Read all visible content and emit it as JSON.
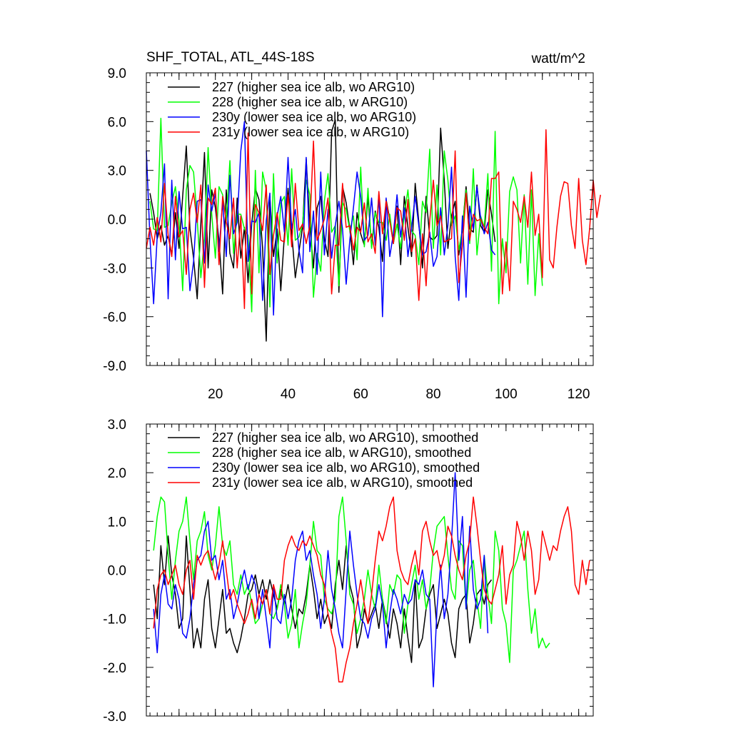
{
  "chart_data": [
    {
      "type": "line",
      "title": "SHF_TOTAL, ATL_44S-18S",
      "units": "watt/m^2",
      "xlim": [
        1,
        124
      ],
      "ylim": [
        -9,
        9
      ],
      "xticks": [
        20,
        40,
        60,
        80,
        100,
        120
      ],
      "xtick_labels": [
        "20",
        "40",
        "60",
        "80",
        "100",
        "120"
      ],
      "yticks": [
        -9,
        -6,
        -3,
        0,
        3,
        6,
        9
      ],
      "ytick_labels": [
        "-9.0",
        "-6.0",
        "-3.0",
        "0.0",
        "3.0",
        "6.0",
        "9.0"
      ],
      "legend_position": "top-left",
      "series": [
        {
          "name": "227 (higher sea ice alb, wo ARG10)",
          "color": "#000000",
          "x_start": 2,
          "values": [
            1.6,
            0.4,
            -1.2,
            -0.4,
            -1.6,
            -1.0,
            -2.2,
            0.4,
            -1.8,
            1.4,
            4.5,
            -0.6,
            -2.4,
            -4.9,
            -0.3,
            4.1,
            -3.0,
            1.8,
            0.7,
            -1.3,
            -4.6,
            1.8,
            -2.1,
            -3.0,
            1.3,
            -2.4,
            -0.5,
            -3.9,
            -0.3,
            1.9,
            1.2,
            -1.8,
            -7.5,
            1.4,
            -2.3,
            -0.6,
            -4.4,
            -1.0,
            1.9,
            -0.8,
            -3.6,
            -2.0,
            -0.5,
            3.7,
            -0.4,
            -3.0,
            0.7,
            1.4,
            -1.2,
            -2.3,
            5.4,
            6.1,
            -4.5,
            2.0,
            1.0,
            -0.6,
            -2.8,
            0.4,
            -0.9,
            -1.6,
            1.4,
            -1.7,
            0.5,
            -0.5,
            -2.6,
            1.2,
            0.0,
            -1.5,
            0.8,
            -2.8,
            1.4,
            -0.5,
            -2.3,
            2.2,
            -0.2,
            -3.0,
            1.4,
            -1.1,
            -1.3,
            -1.0,
            5.6,
            2.4,
            -1.8,
            0.2,
            1.1,
            -2.2,
            -0.6,
            2.0,
            -0.6,
            -0.8,
            2.1,
            -0.4,
            -0.8,
            1.8,
            0.3,
            -1.4
          ]
        },
        {
          "name": "228 (higher sea ice alb, w ARG10)",
          "color": "#00ff00",
          "x_start": 2,
          "values": [
            1.1,
            -0.6,
            -0.7,
            6.2,
            -0.5,
            -0.4,
            1.0,
            2.0,
            -0.1,
            -4.4,
            1.8,
            3.3,
            2.9,
            0.0,
            -3.6,
            -1.2,
            4.4,
            0.3,
            -2.4,
            2.0,
            1.5,
            -0.1,
            3.6,
            -2.1,
            0.3,
            0.3,
            -0.6,
            -1.0,
            -5.7,
            3.0,
            -3.3,
            2.9,
            1.8,
            -5.4,
            2.8,
            -2.7,
            1.0,
            1.4,
            -1.6,
            3.1,
            -1.3,
            -1.1,
            -0.3,
            2.4,
            1.5,
            -4.8,
            -2.1,
            -3.2,
            1.1,
            2.8,
            -0.8,
            -0.4,
            -4.1,
            1.0,
            0.6,
            -0.7,
            0.2,
            -2.5,
            3.2,
            -1.7,
            1.9,
            -1.8,
            0.4,
            -0.2,
            -0.2,
            -1.3,
            0.3,
            -1.5,
            -0.3,
            -1.8,
            0.3,
            1.8,
            -0.7,
            -1.0,
            -2.8,
            1.1,
            0.4,
            4.3,
            -1.8,
            2.1,
            -2.2,
            4.2,
            2.4,
            -0.4,
            0.2,
            -1.9,
            -0.6,
            1.8,
            -1.5,
            3.1,
            -2.2,
            0.2,
            -0.5,
            2.8,
            -3.2,
            5.4,
            -5.2,
            -1.2,
            -3.3,
            1.7,
            2.6,
            1.8,
            -2.7,
            1.5,
            -4.0,
            1.8,
            -4.7,
            -0.9,
            -4.1
          ]
        },
        {
          "name": "230y (lower sea ice alb, wo ARG10)",
          "color": "#0000ff",
          "x_start": 1,
          "values": [
            4.2,
            -1.2,
            -5.2,
            -1.0,
            0.4,
            3.4,
            -4.9,
            2.4,
            -2.5,
            1.7,
            -0.6,
            -0.5,
            -4.4,
            -2.6,
            1.1,
            1.2,
            -2.7,
            2.1,
            0.5,
            1.6,
            -2.0,
            1.1,
            -2.3,
            2.7,
            -0.9,
            -0.2,
            4.2,
            6.0,
            -2.6,
            -0.1,
            -0.2,
            0.4,
            -5.0,
            -0.1,
            1.6,
            -5.9,
            0.2,
            1.4,
            -0.8,
            3.8,
            -0.6,
            0.6,
            -1.9,
            -3.3,
            3.8,
            -2.0,
            0.5,
            -3.4,
            2.9,
            -2.2,
            0.6,
            -2.4,
            -0.4,
            1.1,
            -0.6,
            -4.0,
            -1.3,
            0.7,
            2.9,
            1.4,
            -1.3,
            -1.0,
            1.3,
            -1.6,
            1.5,
            -6.0,
            1.3,
            -2.3,
            -0.9,
            1.5,
            -1.1,
            0.7,
            -2.3,
            -0.5,
            1.4,
            -0.4,
            -2.2,
            -2.0,
            -0.8,
            -2.9,
            -2.3,
            0.7,
            -2.2,
            -0.4,
            3.2,
            -2.3,
            -5.0,
            0.2,
            -4.8,
            0.8,
            -0.6,
            2.0,
            0.1,
            -0.9,
            -0.2,
            -1.9,
            -2.2
          ]
        },
        {
          "name": "231y (lower sea ice alb, w ARG10)",
          "color": "#ff0000",
          "x_start": 1,
          "values": [
            -1.8,
            -0.5,
            -1.6,
            0.1,
            -1.4,
            2.2,
            -1.0,
            -2.3,
            1.4,
            -1.1,
            -0.7,
            -3.4,
            0.6,
            1.6,
            -0.2,
            2.1,
            -4.2,
            1.3,
            0.9,
            1.9,
            -2.8,
            1.4,
            -0.2,
            -1.2,
            1.3,
            -3.0,
            0.2,
            -5.5,
            5.3,
            -4.6,
            0.9,
            0.4,
            -0.7,
            2.1,
            -3.4,
            -1.0,
            0.4,
            -1.3,
            -1.4,
            1.5,
            -1.7,
            2.2,
            -0.7,
            -0.3,
            -1.5,
            -0.4,
            4.8,
            -1.3,
            -0.7,
            0.0,
            1.3,
            -4.6,
            -1.6,
            -1.6,
            2.2,
            -0.5,
            -0.4,
            -1.9,
            -0.5,
            -0.8,
            1.0,
            -1.4,
            -0.9,
            -2.1,
            1.7,
            -0.9,
            1.1,
            -0.1,
            -1.5,
            0.7,
            0.5,
            -1.3,
            1.2,
            -2.0,
            -1.2,
            -5.0,
            -0.9,
            -4.1,
            -0.1,
            2.4,
            -0.4,
            0.2,
            -1.4,
            -1.3,
            -1.2,
            4.2,
            -3.9,
            -1.6,
            1.6,
            -1.3,
            0.3,
            -0.1,
            0.0,
            -0.5,
            -0.9,
            2.5,
            2.5,
            2.9,
            -4.6,
            -1.4,
            -4.4,
            1.1,
            0.6,
            -0.2,
            1.4,
            -0.5,
            2.9,
            -1.0,
            0.3,
            -3.6,
            5.5,
            -2.5,
            -3.0,
            -0.5,
            1.4,
            2.3,
            2.2,
            -0.4,
            -1.8,
            2.5,
            -1.3,
            -2.8,
            -0.6,
            2.4,
            0.1,
            1.5
          ]
        }
      ]
    },
    {
      "type": "line",
      "xlim": [
        1,
        124
      ],
      "ylim": [
        -3,
        3
      ],
      "yticks": [
        -3,
        -2,
        -1,
        0,
        1,
        2,
        3
      ],
      "ytick_labels": [
        "-3.0",
        "-2.0",
        "-1.0",
        "0.0",
        "1.0",
        "2.0",
        "3.0"
      ],
      "legend_position": "top-left",
      "series": [
        {
          "name": "227 (higher sea ice alb, wo ARG10), smoothed",
          "color": "#000000",
          "x_start": 3,
          "values": [
            -0.3,
            -1.0,
            0.5,
            -0.3,
            0.7,
            -0.1,
            -0.5,
            -1.2,
            -1.0,
            0.7,
            -0.4,
            -1.6,
            -1.2,
            -1.6,
            -0.6,
            -0.2,
            -1.2,
            -1.6,
            -1.0,
            -0.4,
            -1.3,
            -1.2,
            -1.5,
            -1.7,
            -1.4,
            -1.0,
            -0.5,
            -0.4,
            -0.1,
            -0.5,
            -0.2,
            -0.6,
            -0.2,
            -0.5,
            -0.8,
            -0.4,
            -0.7,
            -0.3,
            -0.8,
            -1.2,
            -0.8,
            -0.9,
            -0.5,
            0.1,
            -0.4,
            -1.0,
            -0.6,
            -1.1,
            -0.9,
            -1.2,
            -0.3,
            0.2,
            -0.4,
            0.5,
            -0.3,
            -0.6,
            -1.6,
            -1.3,
            -0.8,
            -1.1,
            -0.9,
            -0.7,
            -1.2,
            -0.6,
            -1.0,
            -1.4,
            -0.8,
            -1.1,
            -1.6,
            -0.8,
            -1.4,
            -1.9,
            -0.2,
            -1.6,
            -1.4,
            -0.8,
            -0.5,
            -0.3,
            -1.2,
            -0.9,
            -0.6,
            -0.9,
            -1.5,
            -1.8,
            -0.8,
            -0.6,
            -0.5,
            -1.5,
            -1.1,
            -0.5,
            -0.4,
            -0.7,
            -0.3,
            -0.2
          ]
        },
        {
          "name": "228 (higher sea ice alb, w ARG10), smoothed",
          "color": "#00ff00",
          "x_start": 3,
          "values": [
            0.4,
            1.1,
            1.5,
            1.4,
            0.3,
            -0.6,
            0.2,
            0.8,
            1.0,
            1.5,
            0.6,
            -0.2,
            0.6,
            0.8,
            1.2,
            0.3,
            0.0,
            0.5,
            1.3,
            0.5,
            0.3,
            0.6,
            -0.3,
            -0.5,
            -0.1,
            -0.5,
            -0.3,
            -0.7,
            -1.1,
            -1.0,
            -0.7,
            -0.4,
            -0.9,
            -1.0,
            -0.8,
            -0.3,
            -0.7,
            -1.4,
            -1.1,
            -0.4,
            -1.6,
            -1.1,
            -0.7,
            0.1,
            1.0,
            0.4,
            0.3,
            -0.6,
            -0.8,
            -0.9,
            -0.6,
            1.1,
            1.5,
            0.6,
            -0.5,
            -0.7,
            -1.3,
            -1.0,
            -0.6,
            0.0,
            -0.5,
            -0.8,
            0.1,
            -0.6,
            -1.1,
            -0.3,
            -0.5,
            -0.1,
            -0.2,
            -1.3,
            -0.7,
            -0.3,
            0.1,
            -0.6,
            -0.2,
            -0.8,
            -0.4,
            0.4,
            0.9,
            1.0,
            1.1,
            0.3,
            -0.4,
            -0.6,
            0.6,
            0.5,
            -0.8,
            0.0,
            0.2,
            -0.6,
            -1.2,
            0.3,
            -0.5,
            -1.1,
            0.8,
            0.4,
            -0.8,
            -1.1,
            -1.9,
            0.0,
            0.2,
            0.5,
            0.8,
            -0.4,
            -1.3,
            -0.8,
            -1.6,
            -1.4,
            -1.6,
            -1.5
          ]
        },
        {
          "name": "230y (lower sea ice alb, wo ARG10), smoothed",
          "color": "#0000ff",
          "x_start": 3,
          "values": [
            -0.8,
            -1.7,
            -0.5,
            -0.1,
            -0.7,
            -0.8,
            -0.3,
            -0.6,
            -1.3,
            -1.4,
            -1.0,
            -0.3,
            0.2,
            0.3,
            0.8,
            1.0,
            0.2,
            0.3,
            -0.2,
            0.2,
            -0.6,
            -0.4,
            -1.0,
            -0.7,
            -0.3,
            0.0,
            -0.4,
            -0.1,
            -0.3,
            -1.0,
            -0.4,
            -1.0,
            -1.6,
            -0.3,
            -1.0,
            -1.1,
            -0.5,
            -1.0,
            -0.6,
            0.2,
            0.6,
            0.8,
            0.2,
            0.4,
            -0.1,
            -0.5,
            -1.2,
            -0.6,
            0.4,
            -0.4,
            -0.8,
            -1.3,
            -1.6,
            -0.4,
            0.8,
            0.1,
            -0.5,
            -1.0,
            -1.1,
            -1.4,
            -1.0,
            -0.8,
            -0.3,
            -0.7,
            -1.6,
            -0.9,
            -0.4,
            -0.6,
            -0.9,
            -0.5,
            -0.7,
            -0.6,
            -0.2,
            -0.3,
            0.0,
            -0.5,
            -0.6,
            -2.4,
            -0.8,
            0.1,
            -1.0,
            -0.5,
            0.6,
            2.0,
            0.2,
            1.1,
            -0.8,
            0.9,
            -0.4,
            -0.8,
            -0.6,
            0.3,
            -1.3
          ]
        },
        {
          "name": "231y (lower sea ice alb, w ARG10), smoothed",
          "color": "#ff0000",
          "x_start": 3,
          "values": [
            -1.2,
            -0.4,
            -0.1,
            0.0,
            -0.3,
            -0.1,
            0.1,
            -0.3,
            -0.5,
            0.0,
            0.2,
            -0.6,
            0.3,
            0.1,
            0.3,
            0.4,
            0.1,
            -0.2,
            0.1,
            0.6,
            0.0,
            -0.6,
            -0.4,
            -0.7,
            -0.9,
            -1.1,
            -0.9,
            -0.6,
            -1.0,
            -0.5,
            -0.7,
            -0.4,
            -0.9,
            -0.3,
            -0.6,
            -0.6,
            0.2,
            0.5,
            0.7,
            0.5,
            0.4,
            0.6,
            0.5,
            0.7,
            0.5,
            0.3,
            -0.1,
            -0.3,
            -0.9,
            -1.3,
            -1.6,
            -2.3,
            -2.3,
            -1.9,
            -1.6,
            -1.1,
            -0.7,
            -0.2,
            -0.7,
            -1.1,
            -0.5,
            0.2,
            0.8,
            0.6,
            0.9,
            1.3,
            1.5,
            0.4,
            0.0,
            -0.2,
            -0.3,
            0.1,
            0.4,
            -0.1,
            0.8,
            1.0,
            0.6,
            0.3,
            0.4,
            0.0,
            0.3,
            0.9,
            0.7,
            0.3,
            0.0,
            -0.2,
            0.3,
            0.6,
            1.5,
            0.9,
            0.2,
            -0.4,
            -0.6,
            -0.7,
            -0.4,
            -0.1,
            0.5,
            -0.7,
            -0.1,
            0.1,
            1.0,
            0.7,
            0.2,
            0.8,
            0.4,
            -0.5,
            -0.2,
            0.8,
            0.5,
            0.2,
            0.5,
            0.4,
            0.8,
            1.1,
            1.3,
            0.8,
            -0.3,
            -0.5,
            0.2,
            -0.3,
            0.2
          ]
        }
      ]
    }
  ]
}
